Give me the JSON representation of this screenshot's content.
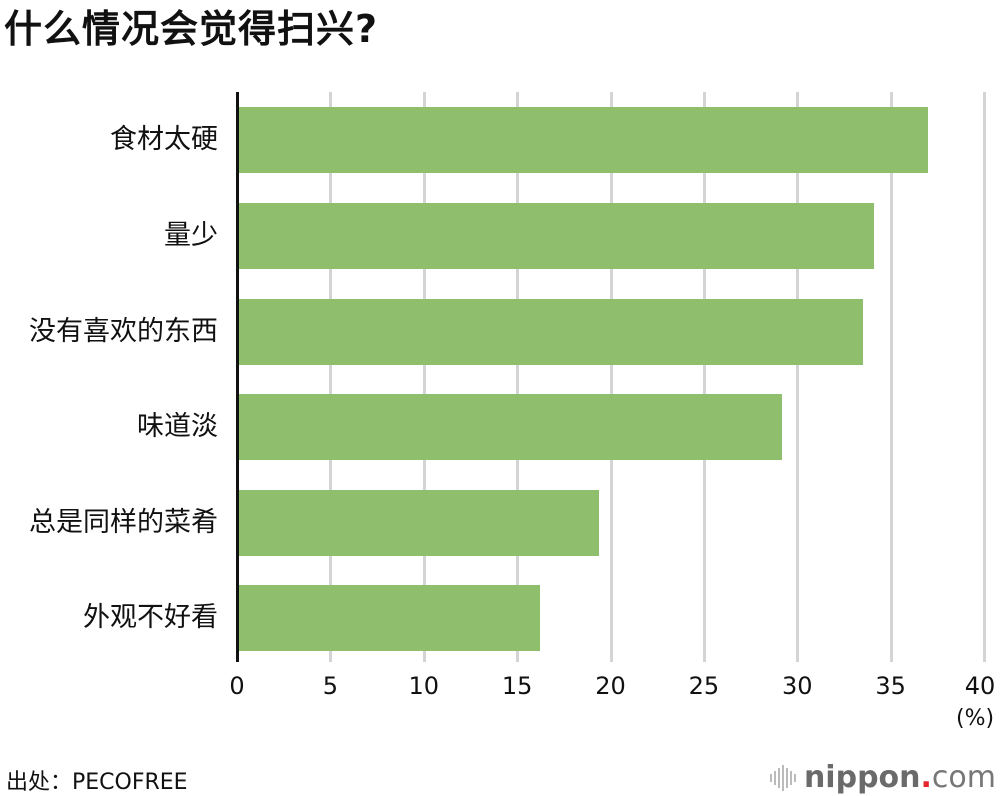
{
  "title": "什么情况会觉得扫兴?",
  "source": "出处：PECOFREE",
  "brand": {
    "name": "nippon",
    "dot": ".",
    "suffix": "com",
    "dot_color": "#e4262c"
  },
  "axis": {
    "ticks": [
      "0",
      "5",
      "10",
      "15",
      "20",
      "25",
      "30",
      "35",
      "40"
    ],
    "unit": "(%)"
  },
  "bar_color": "#8fbf6d",
  "chart_data": {
    "type": "bar",
    "orientation": "horizontal",
    "title": "什么情况会觉得扫兴?",
    "categories": [
      "食材太硬",
      "量少",
      "没有喜欢的东西",
      "味道淡",
      "总是同样的菜肴",
      "外观不好看"
    ],
    "values": [
      37.0,
      34.1,
      33.5,
      29.2,
      19.4,
      16.2
    ],
    "xlabel": "(%)",
    "ylabel": "",
    "xlim": [
      0,
      40
    ],
    "xticks": [
      0,
      5,
      10,
      15,
      20,
      25,
      30,
      35,
      40
    ],
    "grid": true,
    "legend": "none",
    "source": "出处：PECOFREE"
  }
}
